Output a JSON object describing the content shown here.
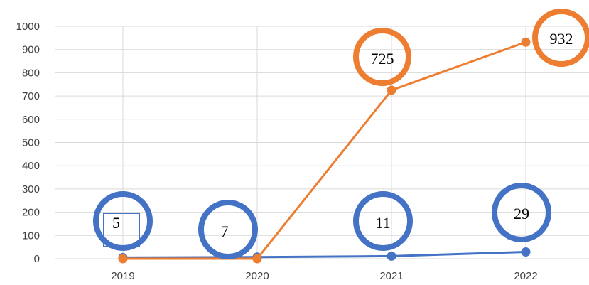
{
  "chart_data": {
    "type": "line",
    "categories": [
      "2019",
      "2020",
      "2021",
      "2022"
    ],
    "series": [
      {
        "color": "#4472C4",
        "values": [
          5,
          7,
          11,
          29
        ],
        "data_labels": [
          "5",
          "7",
          "11",
          "29"
        ]
      },
      {
        "color": "#ED7D31",
        "values": [
          0,
          0,
          725,
          932
        ],
        "data_labels": [
          "",
          "",
          "725",
          "932"
        ]
      }
    ],
    "ylim": [
      0,
      1000
    ],
    "yticks": [
      0,
      100,
      200,
      300,
      400,
      500,
      600,
      700,
      800,
      900,
      1000
    ],
    "grid": true,
    "legend": "none",
    "title": "",
    "xlabel": "",
    "ylabel": ""
  }
}
